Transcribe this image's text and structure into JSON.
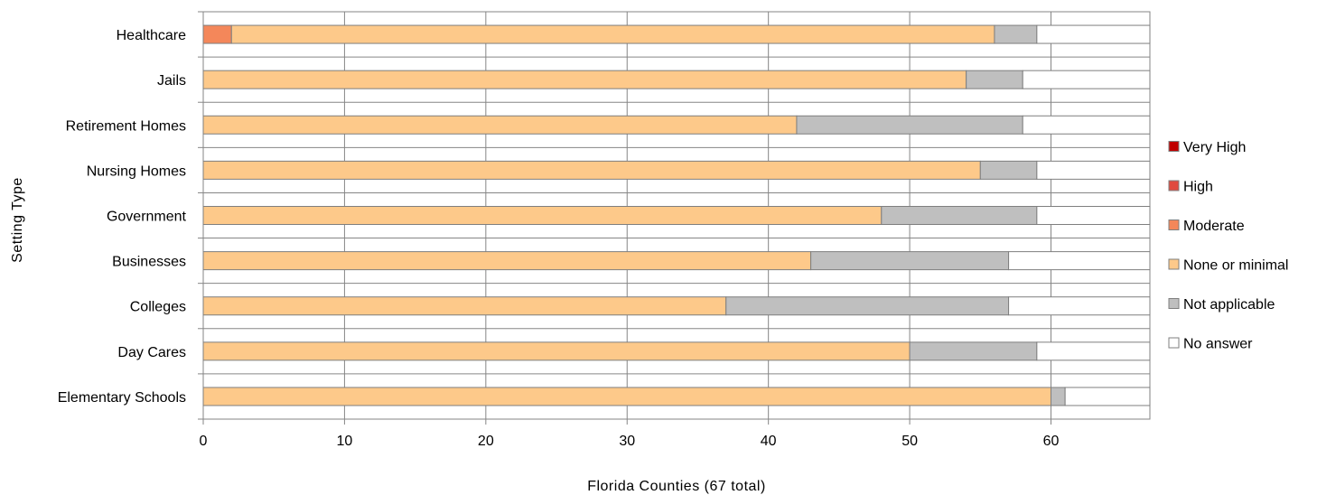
{
  "chart_data": {
    "type": "bar",
    "orientation": "horizontal",
    "stacked": true,
    "categories": [
      "Healthcare",
      "Jails",
      "Retirement Homes",
      "Nursing Homes",
      "Government",
      "Businesses",
      "Colleges",
      "Day Cares",
      "Elementary Schools"
    ],
    "series": [
      {
        "name": "Very High",
        "color": "#c00000",
        "values": [
          0,
          0,
          0,
          0,
          0,
          0,
          0,
          0,
          0
        ]
      },
      {
        "name": "High",
        "color": "#e04a3f",
        "values": [
          0,
          0,
          0,
          0,
          0,
          0,
          0,
          0,
          0
        ]
      },
      {
        "name": "Moderate",
        "color": "#f4875a",
        "values": [
          2,
          0,
          0,
          0,
          0,
          0,
          0,
          0,
          0
        ]
      },
      {
        "name": "None or minimal",
        "color": "#fdc98a",
        "values": [
          54,
          54,
          42,
          55,
          48,
          43,
          37,
          50,
          60
        ]
      },
      {
        "name": "Not applicable",
        "color": "#bfbfbf",
        "values": [
          3,
          4,
          16,
          4,
          11,
          14,
          20,
          9,
          1
        ]
      },
      {
        "name": "No answer",
        "color": "#ffffff",
        "values": [
          8,
          9,
          9,
          8,
          8,
          10,
          10,
          8,
          6
        ]
      }
    ],
    "xlabel": "Florida Counties (67 total)",
    "ylabel": "Setting Type",
    "xlim": [
      0,
      67
    ],
    "xticks": [
      0,
      10,
      20,
      30,
      40,
      50,
      60
    ],
    "grid": true,
    "legend_position": "right"
  }
}
